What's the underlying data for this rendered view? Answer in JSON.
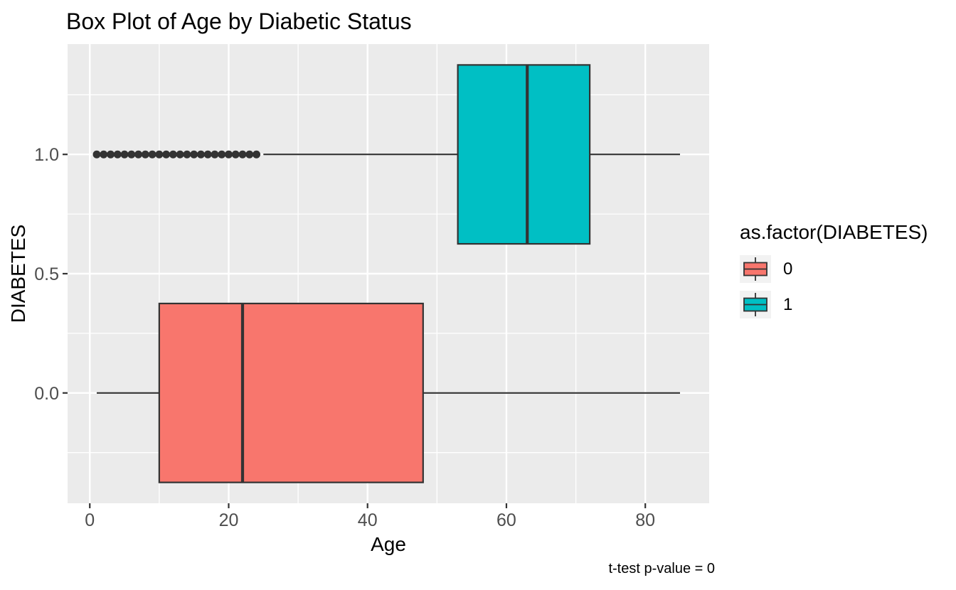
{
  "chart_data": {
    "type": "boxplot",
    "orientation": "horizontal",
    "title": "Box Plot of Age by Diabetic Status",
    "xlabel": "Age",
    "ylabel": "DIABETES",
    "caption": "t-test p-value = 0",
    "xlim": [
      -3.2,
      89.2
    ],
    "ylim": [
      -0.4625,
      1.4625
    ],
    "x_ticks": [
      0,
      20,
      40,
      60,
      80
    ],
    "x_minor_ticks": [
      10,
      30,
      50,
      70
    ],
    "y_ticks": [
      {
        "value": 0.0,
        "label": "0.0"
      },
      {
        "value": 0.5,
        "label": "0.5"
      },
      {
        "value": 1.0,
        "label": "1.0"
      }
    ],
    "y_minor_ticks": [
      -0.25,
      0.25,
      0.75,
      1.25
    ],
    "grid": true,
    "colors": {
      "panel_background": "#EBEBEB",
      "gridline": "#FFFFFF",
      "box_outline": "#333333",
      "outlier_dot": "#333333",
      "tick_label": "#4D4D4D",
      "tick_mark": "#333333",
      "legend_key_background": "#F2F2F2"
    },
    "box_width": 0.75,
    "series": [
      {
        "group": "0",
        "y": 0,
        "fill": "#F8766D",
        "whisker_low": 1,
        "q1": 10,
        "median": 22,
        "q3": 48,
        "whisker_high": 85,
        "outliers": []
      },
      {
        "group": "1",
        "y": 1,
        "fill": "#00BFC4",
        "whisker_low": 25,
        "q1": 53,
        "median": 63,
        "q3": 72,
        "whisker_high": 85,
        "outliers": [
          1,
          2,
          3,
          4,
          5,
          6,
          7,
          8,
          9,
          10,
          11,
          12,
          13,
          14,
          15,
          16,
          17,
          18,
          19,
          20,
          21,
          22,
          23,
          24
        ]
      }
    ],
    "legend": {
      "title": "as.factor(DIABETES)",
      "position": "right",
      "entries": [
        {
          "label": "0",
          "fill": "#F8766D"
        },
        {
          "label": "1",
          "fill": "#00BFC4"
        }
      ]
    }
  }
}
